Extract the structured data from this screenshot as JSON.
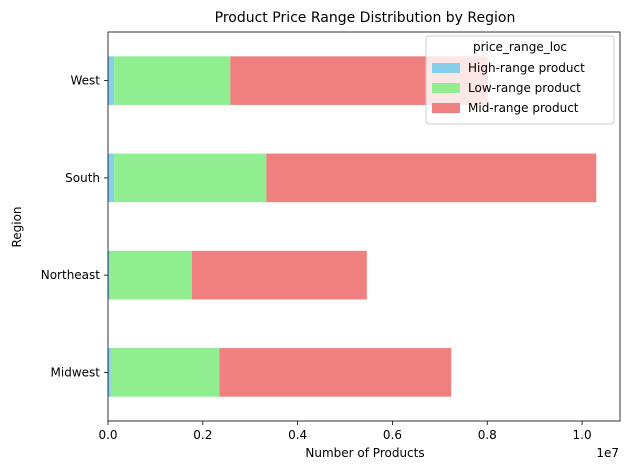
{
  "chart_data": {
    "type": "bar",
    "orientation": "horizontal",
    "stacked": true,
    "title": "Product Price Range Distribution by Region",
    "xlabel": "Number of Products",
    "ylabel": "Region",
    "x_offset_text": "1e7",
    "xlim": [
      0,
      10800000
    ],
    "x_ticks": [
      0,
      2000000,
      4000000,
      6000000,
      8000000,
      10000000
    ],
    "x_tick_labels": [
      "0.0",
      "0.2",
      "0.4",
      "0.6",
      "0.8",
      "1.0"
    ],
    "categories": [
      "Midwest",
      "Northeast",
      "South",
      "West"
    ],
    "series": [
      {
        "name": "High-range product",
        "color": "#87ceeb",
        "values": [
          60000,
          40000,
          130000,
          130000
        ]
      },
      {
        "name": "Low-range product",
        "color": "#90ee90",
        "values": [
          2290000,
          1730000,
          3210000,
          2450000
        ]
      },
      {
        "name": "Mid-range product",
        "color": "#f08080",
        "values": [
          4890000,
          3690000,
          6960000,
          5430000
        ]
      }
    ],
    "legend": {
      "title": "price_range_loc",
      "position": "top-right"
    },
    "grid": false
  }
}
